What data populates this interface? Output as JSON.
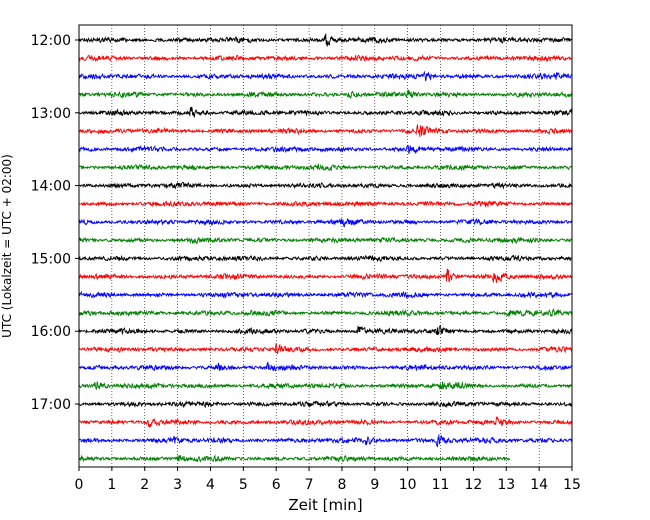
{
  "chart_data": {
    "type": "line",
    "title": "",
    "xlabel": "Zeit  [min]",
    "ylabel": "UTC (Lokalzeit = UTC + 02:00)",
    "xlim": [
      0,
      15
    ],
    "x_ticks": [
      0,
      1,
      2,
      3,
      4,
      5,
      6,
      7,
      8,
      9,
      10,
      11,
      12,
      13,
      14,
      15
    ],
    "x_tick_labels": [
      "0",
      "1",
      "2",
      "3",
      "4",
      "5",
      "6",
      "7",
      "8",
      "9",
      "10",
      "11",
      "12",
      "13",
      "14",
      "15"
    ],
    "y_ticks": [
      "12:00",
      "13:00",
      "14:00",
      "15:00",
      "16:00",
      "17:00"
    ],
    "grid": "vertical dotted",
    "trace_minutes": 15,
    "colors": [
      "#000000",
      "#ff0000",
      "#0000ff",
      "#008000"
    ],
    "traces": [
      {
        "start": "12:00",
        "color": "#000000",
        "end_min": 15,
        "events": [
          {
            "t": 7.5,
            "amp": 1.0
          }
        ]
      },
      {
        "start": "12:15",
        "color": "#ff0000",
        "end_min": 15,
        "events": []
      },
      {
        "start": "12:30",
        "color": "#0000ff",
        "end_min": 15,
        "events": [
          {
            "t": 10.5,
            "amp": 0.6
          },
          {
            "t": 14.5,
            "amp": 0.5
          }
        ]
      },
      {
        "start": "12:45",
        "color": "#008000",
        "end_min": 15,
        "events": [
          {
            "t": 8.2,
            "amp": 0.6
          },
          {
            "t": 10.0,
            "amp": 0.5
          }
        ]
      },
      {
        "start": "13:00",
        "color": "#000000",
        "end_min": 15,
        "events": [
          {
            "t": 3.4,
            "amp": 0.9
          }
        ]
      },
      {
        "start": "13:15",
        "color": "#ff0000",
        "end_min": 15,
        "events": [
          {
            "t": 10.3,
            "amp": 1.0
          }
        ]
      },
      {
        "start": "13:30",
        "color": "#0000ff",
        "end_min": 15,
        "events": [
          {
            "t": 10.0,
            "amp": 0.6
          }
        ]
      },
      {
        "start": "13:45",
        "color": "#008000",
        "end_min": 15,
        "events": []
      },
      {
        "start": "14:00",
        "color": "#000000",
        "end_min": 15,
        "events": []
      },
      {
        "start": "14:15",
        "color": "#ff0000",
        "end_min": 15,
        "events": []
      },
      {
        "start": "14:30",
        "color": "#0000ff",
        "end_min": 15,
        "events": [
          {
            "t": 8.0,
            "amp": 0.5
          }
        ]
      },
      {
        "start": "14:45",
        "color": "#008000",
        "end_min": 15,
        "events": []
      },
      {
        "start": "15:00",
        "color": "#000000",
        "end_min": 15,
        "events": []
      },
      {
        "start": "15:15",
        "color": "#ff0000",
        "end_min": 15,
        "events": [
          {
            "t": 11.2,
            "amp": 1.0
          },
          {
            "t": 12.6,
            "amp": 0.9
          }
        ]
      },
      {
        "start": "15:30",
        "color": "#0000ff",
        "end_min": 15,
        "events": []
      },
      {
        "start": "15:45",
        "color": "#008000",
        "end_min": 15,
        "events": [
          {
            "t": 13.0,
            "amp": 0.6
          },
          {
            "t": 14.3,
            "amp": 0.5
          }
        ]
      },
      {
        "start": "16:00",
        "color": "#000000",
        "end_min": 15,
        "events": [
          {
            "t": 8.5,
            "amp": 0.7
          },
          {
            "t": 10.9,
            "amp": 0.7
          }
        ]
      },
      {
        "start": "16:15",
        "color": "#ff0000",
        "end_min": 15,
        "events": [
          {
            "t": 6.0,
            "amp": 0.6
          }
        ]
      },
      {
        "start": "16:30",
        "color": "#0000ff",
        "end_min": 15,
        "events": [
          {
            "t": 4.2,
            "amp": 0.5
          },
          {
            "t": 5.7,
            "amp": 0.5
          }
        ]
      },
      {
        "start": "16:45",
        "color": "#008000",
        "end_min": 15,
        "events": [
          {
            "t": 0.5,
            "amp": 0.6
          },
          {
            "t": 11.0,
            "amp": 0.6
          }
        ]
      },
      {
        "start": "17:00",
        "color": "#000000",
        "end_min": 15,
        "events": [
          {
            "t": 3.8,
            "amp": 0.5
          }
        ]
      },
      {
        "start": "17:15",
        "color": "#ff0000",
        "end_min": 15,
        "events": [
          {
            "t": 2.1,
            "amp": 0.6
          },
          {
            "t": 12.7,
            "amp": 0.5
          }
        ]
      },
      {
        "start": "17:30",
        "color": "#0000ff",
        "end_min": 15,
        "events": [
          {
            "t": 2.8,
            "amp": 0.6
          },
          {
            "t": 8.7,
            "amp": 0.5
          },
          {
            "t": 10.9,
            "amp": 1.0
          }
        ]
      },
      {
        "start": "17:45",
        "color": "#008000",
        "end_min": 13.1,
        "events": [
          {
            "t": 3.0,
            "amp": 0.4
          }
        ]
      }
    ]
  }
}
